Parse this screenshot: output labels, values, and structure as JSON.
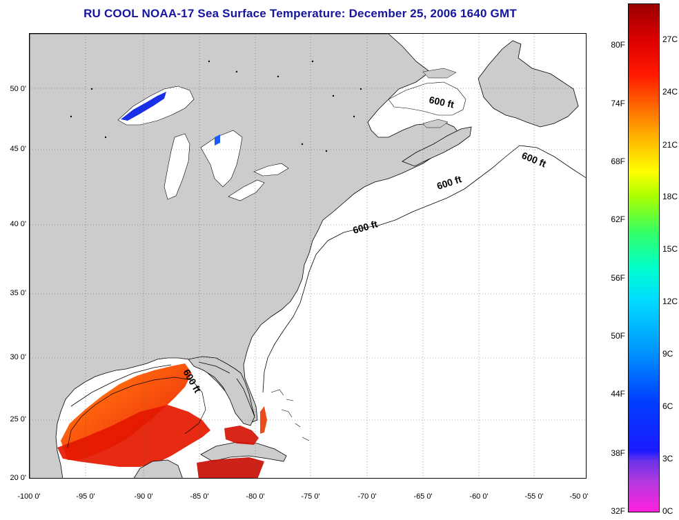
{
  "title": "RU COOL  NOAA-17  Sea Surface Temperature:  December 25, 2006 1640 GMT",
  "map": {
    "lat_labels": [
      "50 0'",
      "45 0'",
      "40 0'",
      "35 0'",
      "30 0'",
      "25 0'",
      "20 0'"
    ],
    "lon_labels": [
      "-100 0'",
      "-95 0'",
      "-90 0'",
      "-85 0'",
      "-80 0'",
      "-75 0'",
      "-70 0'",
      "-65 0'",
      "-60 0'",
      "-55 0'",
      "-50 0'"
    ],
    "contour_labels": [
      "600 ft",
      "600 ft",
      "600 ft",
      "600 ft",
      "600 ft"
    ],
    "land_color": "#cccccc",
    "ocean_color": "#ffffff"
  },
  "colorbar": {
    "fahrenheit_labels": [
      "80F",
      "74F",
      "68F",
      "62F",
      "56F",
      "50F",
      "44F",
      "38F",
      "32F"
    ],
    "celsius_labels": [
      "27C",
      "24C",
      "21C",
      "18C",
      "15C",
      "12C",
      "9C",
      "6C",
      "3C",
      "0C"
    ]
  }
}
